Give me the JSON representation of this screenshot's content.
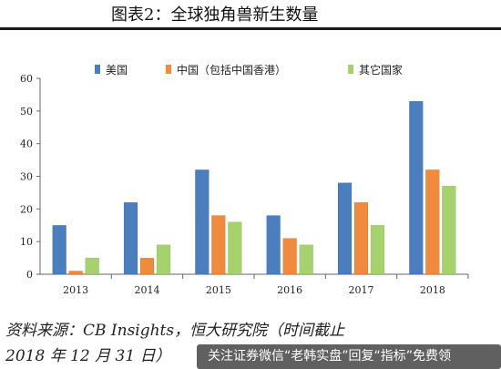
{
  "title": "图表2：全球独角兽新生数量",
  "source_line1": "资料来源：CB Insights，恒大研究院（时间截止",
  "source_line2": "2018 年 12 月 31 日）",
  "watermark": "关注证券微信“老韩实盘”回复“指标”免费领",
  "colors": {
    "series_0": "#4a7ebf",
    "series_1": "#f08a3c",
    "series_2": "#a6d26e"
  },
  "chart_data": {
    "type": "bar",
    "title": "图表2：全球独角兽新生数量",
    "categories": [
      "2013",
      "2014",
      "2015",
      "2016",
      "2017",
      "2018"
    ],
    "series": [
      {
        "name": "美国",
        "values": [
          15,
          22,
          32,
          18,
          28,
          53
        ]
      },
      {
        "name": "中国（包括中国香港）",
        "values": [
          1,
          5,
          18,
          11,
          22,
          32
        ]
      },
      {
        "name": "其它国家",
        "values": [
          5,
          9,
          16,
          9,
          15,
          27
        ]
      }
    ],
    "ylim": [
      0,
      60
    ],
    "yticks": [
      0,
      10,
      20,
      30,
      40,
      50,
      60
    ],
    "legend": "top",
    "grid": false
  }
}
